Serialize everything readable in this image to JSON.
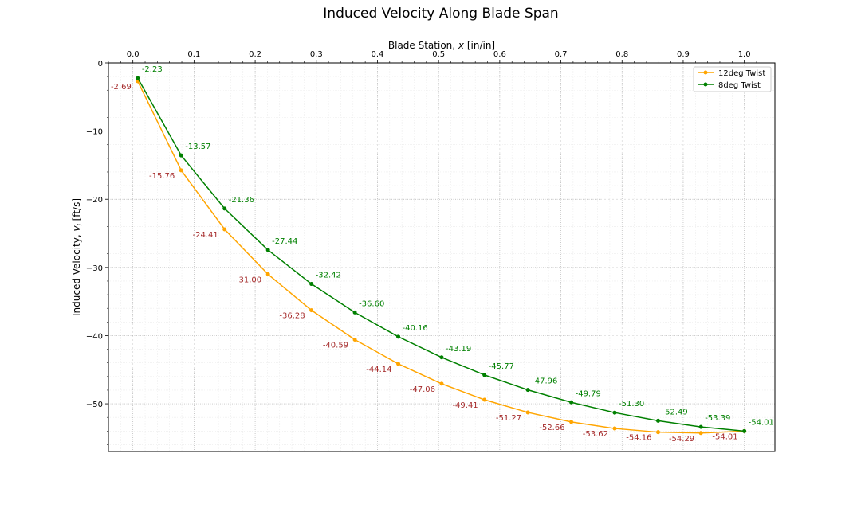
{
  "chart_data": {
    "type": "line",
    "title": "Induced Velocity Along Blade Span",
    "xlabel": "Blade Station, ",
    "xlabel_var": "x",
    "xlabel_unit": " [in/in]",
    "ylabel": "Induced Velocity, ",
    "ylabel_var": "v",
    "ylabel_sub": "i",
    "ylabel_unit": " [ft/s]",
    "x_axis_position": "top",
    "xlim": [
      -0.04,
      1.05
    ],
    "ylim": [
      -57,
      0
    ],
    "xticks": [
      0.0,
      0.1,
      0.2,
      0.3,
      0.4,
      0.5,
      0.6,
      0.7,
      0.8,
      0.9,
      1.0
    ],
    "xtick_labels": [
      "0.0",
      "0.1",
      "0.2",
      "0.3",
      "0.4",
      "0.5",
      "0.6",
      "0.7",
      "0.8",
      "0.9",
      "1.0"
    ],
    "yticks": [
      0,
      -10,
      -20,
      -30,
      -40,
      -50
    ],
    "ytick_labels": [
      "0",
      "−10",
      "−20",
      "−30",
      "−40",
      "−50"
    ],
    "grid": true,
    "legend_position": "top-right",
    "x": [
      0.008,
      0.079,
      0.15,
      0.221,
      0.292,
      0.363,
      0.434,
      0.505,
      0.575,
      0.646,
      0.717,
      0.788,
      0.859,
      0.929,
      1.0
    ],
    "series": [
      {
        "name": "12deg Twist",
        "color": "#ffa500",
        "label_color": "#a52a2a",
        "label_side": "left",
        "values": [
          -2.69,
          -15.76,
          -24.41,
          -31.0,
          -36.28,
          -40.59,
          -44.14,
          -47.06,
          -49.41,
          -51.27,
          -52.66,
          -53.62,
          -54.16,
          -54.29,
          -54.01
        ],
        "labels": [
          "-2.69",
          "-15.76",
          "-24.41",
          "-31.00",
          "-36.28",
          "-40.59",
          "-44.14",
          "-47.06",
          "-49.41",
          "-51.27",
          "-52.66",
          "-53.62",
          "-54.16",
          "-54.29",
          "-54.01"
        ]
      },
      {
        "name": "8deg Twist",
        "color": "#008000",
        "label_color": "#008000",
        "label_side": "right",
        "values": [
          -2.23,
          -13.57,
          -21.36,
          -27.44,
          -32.42,
          -36.6,
          -40.16,
          -43.19,
          -45.77,
          -47.96,
          -49.79,
          -51.3,
          -52.49,
          -53.39,
          -54.01
        ],
        "labels": [
          "-2.23",
          "-13.57",
          "-21.36",
          "-27.44",
          "-32.42",
          "-36.60",
          "-40.16",
          "-43.19",
          "-45.77",
          "-47.96",
          "-49.79",
          "-51.30",
          "-52.49",
          "-53.39",
          "-54.01"
        ]
      }
    ]
  }
}
